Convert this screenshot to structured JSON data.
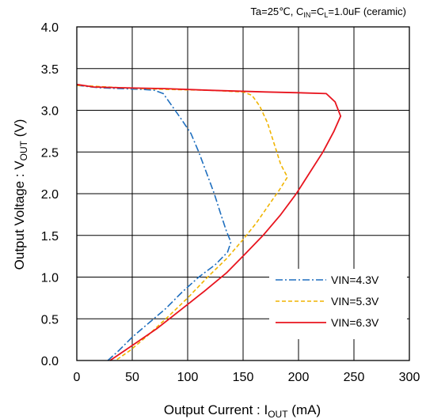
{
  "conditions": {
    "prefix": "Ta=25℃, C",
    "in_sub": "IN",
    "mid": "=C",
    "l_sub": "L",
    "suffix": "=1.0uF  (ceramic)"
  },
  "chart_data": {
    "type": "line",
    "xlabel": {
      "main": "Output Current : I",
      "sub": "OUT",
      "tail": " (mA)"
    },
    "ylabel": {
      "main": "Output Voltage : V",
      "sub": "OUT",
      "tail": " (V)"
    },
    "xlim": [
      0,
      300
    ],
    "ylim": [
      0,
      4.0
    ],
    "xticks": [
      0,
      50,
      100,
      150,
      200,
      250,
      300
    ],
    "yticks": [
      0.0,
      0.5,
      1.0,
      1.5,
      2.0,
      2.5,
      3.0,
      3.5,
      4.0
    ],
    "xtick_labels": [
      "0",
      "50",
      "100",
      "150",
      "200",
      "250",
      "300"
    ],
    "ytick_labels": [
      "0.0",
      "0.5",
      "1.0",
      "1.5",
      "2.0",
      "2.5",
      "3.0",
      "3.5",
      "4.0"
    ],
    "grid": true,
    "legend_position": "bottom-right",
    "series": [
      {
        "name": "VIN=4.3V",
        "color": "#1f6fbf",
        "dash": "dashdot",
        "points": [
          [
            0,
            3.3
          ],
          [
            20,
            3.27
          ],
          [
            40,
            3.26
          ],
          [
            60,
            3.25
          ],
          [
            70,
            3.24
          ],
          [
            78,
            3.2
          ],
          [
            86,
            3.05
          ],
          [
            95,
            2.88
          ],
          [
            103,
            2.72
          ],
          [
            110,
            2.5
          ],
          [
            117,
            2.25
          ],
          [
            124,
            2.0
          ],
          [
            130,
            1.75
          ],
          [
            135,
            1.55
          ],
          [
            139,
            1.42
          ],
          [
            136,
            1.3
          ],
          [
            125,
            1.15
          ],
          [
            110,
            1.0
          ],
          [
            95,
            0.82
          ],
          [
            80,
            0.62
          ],
          [
            65,
            0.45
          ],
          [
            50,
            0.28
          ],
          [
            38,
            0.12
          ],
          [
            28,
            0.0
          ]
        ]
      },
      {
        "name": "VIN=5.3V",
        "color": "#f0b400",
        "dash": "dashed",
        "points": [
          [
            0,
            3.3
          ],
          [
            40,
            3.27
          ],
          [
            80,
            3.25
          ],
          [
            120,
            3.24
          ],
          [
            150,
            3.22
          ],
          [
            158,
            3.18
          ],
          [
            165,
            3.05
          ],
          [
            172,
            2.85
          ],
          [
            178,
            2.6
          ],
          [
            184,
            2.35
          ],
          [
            190,
            2.2
          ],
          [
            183,
            2.05
          ],
          [
            174,
            1.88
          ],
          [
            162,
            1.65
          ],
          [
            150,
            1.45
          ],
          [
            135,
            1.22
          ],
          [
            118,
            1.0
          ],
          [
            100,
            0.75
          ],
          [
            82,
            0.52
          ],
          [
            64,
            0.3
          ],
          [
            48,
            0.12
          ],
          [
            35,
            0.0
          ]
        ]
      },
      {
        "name": "VIN=6.3V",
        "color": "#e8141e",
        "dash": "solid",
        "points": [
          [
            0,
            3.31
          ],
          [
            15,
            3.28
          ],
          [
            40,
            3.27
          ],
          [
            80,
            3.26
          ],
          [
            120,
            3.24
          ],
          [
            170,
            3.22
          ],
          [
            200,
            3.21
          ],
          [
            225,
            3.2
          ],
          [
            233,
            3.1
          ],
          [
            238,
            2.93
          ],
          [
            232,
            2.75
          ],
          [
            222,
            2.5
          ],
          [
            210,
            2.25
          ],
          [
            198,
            2.0
          ],
          [
            184,
            1.75
          ],
          [
            168,
            1.5
          ],
          [
            152,
            1.28
          ],
          [
            135,
            1.05
          ],
          [
            115,
            0.83
          ],
          [
            95,
            0.62
          ],
          [
            72,
            0.38
          ],
          [
            50,
            0.18
          ],
          [
            30,
            0.0
          ]
        ]
      }
    ]
  }
}
